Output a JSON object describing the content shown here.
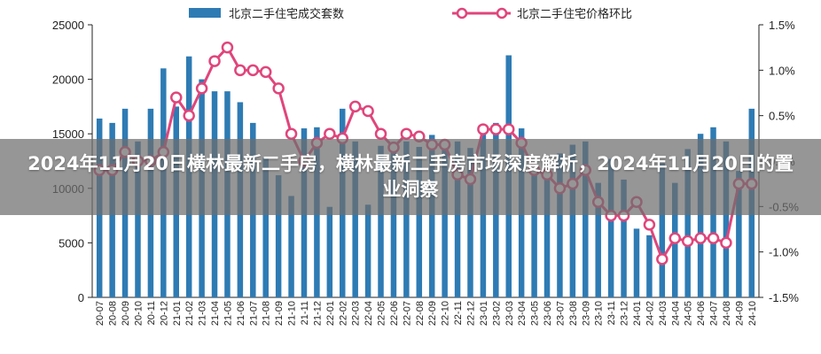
{
  "banner": {
    "title": "2024年11月20日横林最新二手房，横林最新二手房市场深度解析，2024年11月20日的置业洞察"
  },
  "colors": {
    "bar": "#2e7bb4",
    "line": "#e0457b",
    "marker_fill": "#ffffff",
    "axis": "#222222"
  },
  "chart_data": {
    "type": "bar+line",
    "categories": [
      "20-07",
      "20-08",
      "20-09",
      "20-10",
      "20-11",
      "20-12",
      "21-01",
      "21-02",
      "21-03",
      "21-04",
      "21-05",
      "21-06",
      "21-07",
      "21-08",
      "21-09",
      "21-10",
      "21-11",
      "21-12",
      "22-01",
      "22-02",
      "22-03",
      "22-04",
      "22-05",
      "22-06",
      "22-07",
      "22-08",
      "22-09",
      "22-10",
      "22-11",
      "22-12",
      "23-01",
      "23-02",
      "23-03",
      "23-04",
      "23-05",
      "23-06",
      "23-07",
      "23-08",
      "23-09",
      "23-10",
      "23-11",
      "23-12",
      "24-01",
      "24-02",
      "24-03",
      "24-04",
      "24-05",
      "24-06",
      "24-07",
      "24-08",
      "24-09",
      "24-10"
    ],
    "series": [
      {
        "name": "北京二手住宅成交套数",
        "type": "bar",
        "axis": "left",
        "values": [
          16400,
          16000,
          17300,
          14300,
          17300,
          21000,
          17500,
          22100,
          20000,
          18900,
          18900,
          17900,
          16000,
          12800,
          11200,
          9300,
          15500,
          15600,
          8300,
          17300,
          14300,
          8500,
          13900,
          13900,
          14300,
          13800,
          14900,
          14400,
          14300,
          13700,
          15000,
          16000,
          22200,
          15500,
          12000,
          11000,
          13200,
          14000,
          14300,
          10500,
          12700,
          10800,
          6300,
          5700,
          12300,
          10500,
          13600,
          15000,
          15600,
          14300,
          11600,
          17300
        ]
      },
      {
        "name": "北京二手住宅价格环比",
        "type": "line",
        "axis": "right",
        "values": [
          -0.1,
          -0.1,
          0.1,
          0.0,
          0.0,
          0.1,
          0.7,
          0.5,
          0.8,
          1.1,
          1.25,
          1.0,
          1.0,
          0.98,
          0.8,
          0.3,
          0.0,
          0.2,
          0.3,
          0.25,
          0.6,
          0.55,
          0.3,
          0.15,
          0.3,
          0.27,
          0.18,
          0.18,
          -0.15,
          -0.2,
          0.35,
          0.35,
          0.35,
          0.2,
          -0.1,
          -0.15,
          -0.3,
          -0.25,
          -0.1,
          -0.45,
          -0.6,
          -0.6,
          -0.45,
          -0.7,
          -1.08,
          -0.85,
          -0.88,
          -0.85,
          -0.85,
          -0.9,
          -0.25,
          -0.25
        ]
      }
    ],
    "y_left": {
      "ticks": [
        0,
        5000,
        10000,
        15000,
        20000,
        25000
      ],
      "ylim": [
        0,
        25000
      ]
    },
    "y_right": {
      "ticks": [
        "-1.5%",
        "-1.0%",
        "-0.5%",
        "0.0%",
        "0.5%",
        "1.0%",
        "1.5%"
      ],
      "ylim": [
        -1.5,
        1.5
      ]
    },
    "legend_position": "top"
  }
}
